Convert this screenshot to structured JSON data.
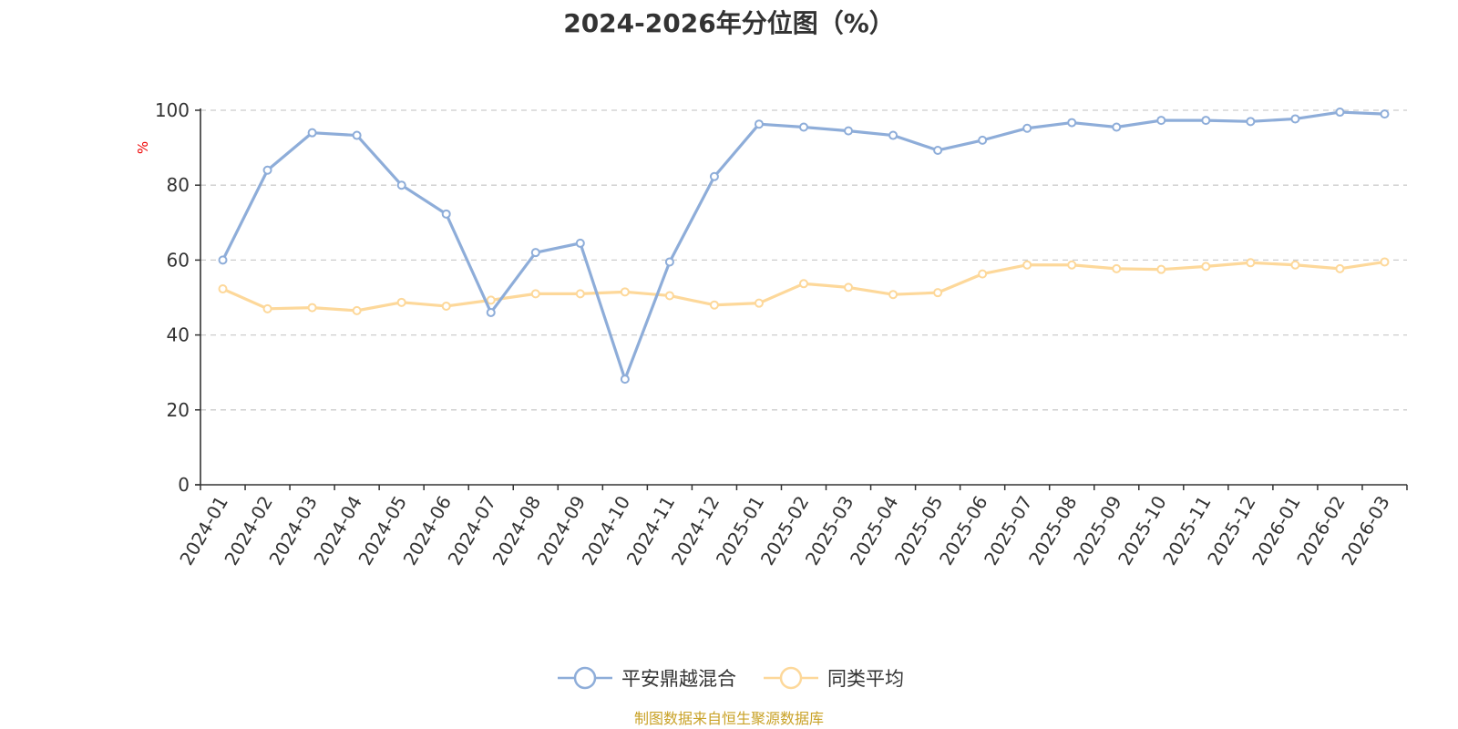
{
  "chart_data": {
    "type": "line",
    "title": "2024-2026年分位图（%）",
    "ylabel": "%",
    "xlabel": "",
    "ylim": [
      0,
      100
    ],
    "yticks": [
      0,
      20,
      40,
      60,
      80,
      100
    ],
    "grid": true,
    "legend_position": "bottom-center",
    "categories": [
      "2024-01",
      "2024-02",
      "2024-03",
      "2024-04",
      "2024-05",
      "2024-06",
      "2024-07",
      "2024-08",
      "2024-09",
      "2024-10",
      "2024-11",
      "2024-12",
      "2025-01",
      "2025-02",
      "2025-03",
      "2025-04",
      "2025-05",
      "2025-06",
      "2025-07",
      "2025-08",
      "2025-09",
      "2025-10",
      "2025-11",
      "2025-12",
      "2026-01",
      "2026-02",
      "2026-03"
    ],
    "series": [
      {
        "name": "平安鼎越混合",
        "color": "#8eadd9",
        "values": [
          60,
          84,
          94,
          93.3,
          80,
          72.3,
          46,
          62,
          64.5,
          28.2,
          59.5,
          82.3,
          96.3,
          95.5,
          94.5,
          93.3,
          89.3,
          92,
          95.2,
          96.7,
          95.5,
          97.3,
          97.3,
          97,
          97.7,
          99.5,
          99
        ]
      },
      {
        "name": "同类平均",
        "color": "#fdd89a",
        "values": [
          52.3,
          47,
          47.3,
          46.5,
          48.7,
          47.7,
          49.3,
          51,
          51,
          51.5,
          50.5,
          48,
          48.5,
          53.7,
          52.7,
          50.8,
          51.3,
          56.3,
          58.7,
          58.7,
          57.7,
          57.5,
          58.3,
          59.3,
          58.7,
          57.7,
          59.5
        ]
      }
    ]
  },
  "source_note": "制图数据来自恒生聚源数据库"
}
